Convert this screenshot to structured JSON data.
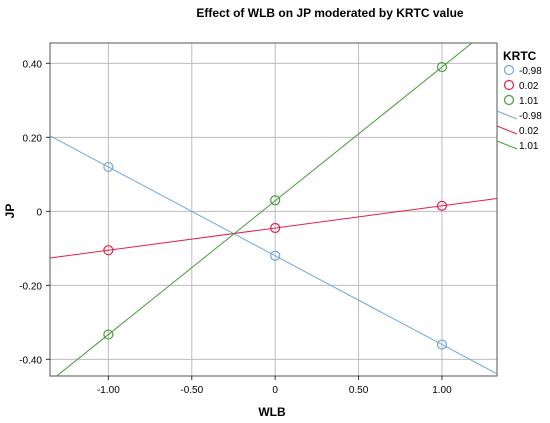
{
  "chart_data": {
    "type": "line",
    "title": "Effect of WLB on JP moderated by KRTC value",
    "xlabel": "WLB",
    "ylabel": "JP",
    "xlim": [
      -1.35,
      1.33
    ],
    "ylim": [
      -0.445,
      0.455
    ],
    "x_ticks": [
      -1.0,
      -0.5,
      0.0,
      0.5,
      1.0
    ],
    "x_tick_labels": [
      "-1.00",
      "-0.50",
      "0",
      "0.50",
      "1.00"
    ],
    "y_ticks": [
      0.4,
      0.2,
      0.0,
      -0.2,
      -0.4
    ],
    "y_tick_labels": [
      "0.40",
      "0.20",
      "0",
      "-0.20",
      "-0.40"
    ],
    "grid": true,
    "legend_placement": "right",
    "legend": {
      "title": "KRTC",
      "marker_entries": [
        "-0.98",
        "0.02",
        "1.01"
      ],
      "line_entries": [
        "-0.98",
        "0.02",
        "1.01"
      ]
    },
    "series": [
      {
        "name": "-0.98",
        "color": "#6fa8dc",
        "points": [
          [
            -1.0,
            0.12
          ],
          [
            0.0,
            -0.12
          ],
          [
            1.0,
            -0.36
          ]
        ]
      },
      {
        "name": "0.02",
        "color": "#e0214e",
        "points": [
          [
            -1.0,
            -0.105
          ],
          [
            0.0,
            -0.045
          ],
          [
            1.0,
            0.015
          ]
        ]
      },
      {
        "name": "1.01",
        "color": "#4a9a3a",
        "points": [
          [
            -1.0,
            -0.333
          ],
          [
            0.0,
            0.03
          ],
          [
            1.0,
            0.39
          ]
        ]
      }
    ]
  }
}
